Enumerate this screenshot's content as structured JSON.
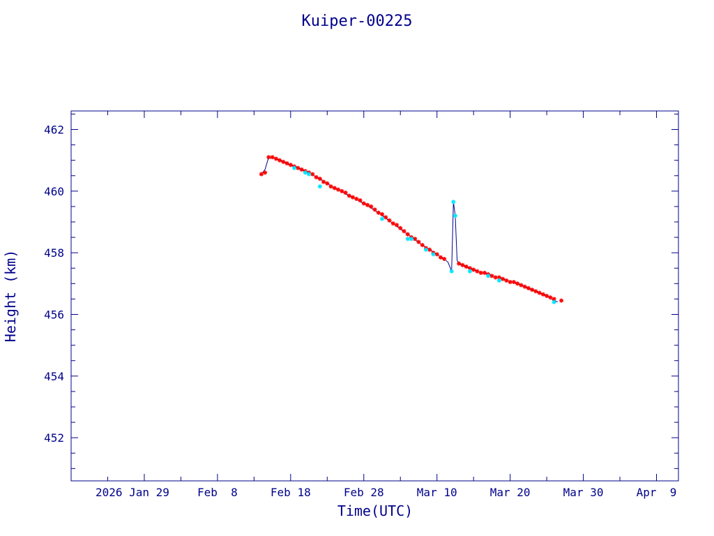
{
  "chart_data": {
    "type": "line",
    "title": "Kuiper-00225",
    "xlabel": "Time(UTC)",
    "ylabel": "Height (km)",
    "x_tick_labels": [
      "2026 Jan 29",
      "Feb  8",
      "Feb 18",
      "Feb 28",
      "Mar 10",
      "Mar 20",
      "Mar 30",
      "Apr  9"
    ],
    "y_tick_labels": [
      "452",
      "454",
      "456",
      "458",
      "460",
      "462"
    ],
    "y_ticks": [
      452,
      454,
      456,
      458,
      460,
      462
    ],
    "ylim": [
      450.6,
      462.6
    ],
    "xlim": [
      "2026-01-19",
      "2026-04-12"
    ],
    "grid": false,
    "legend": "none",
    "colors": {
      "frame": "#00008b",
      "line": "#00008b",
      "primary_points": "#ff0000",
      "secondary_points": "#00e5ff"
    },
    "series": [
      {
        "style": "line",
        "color": "#00008b",
        "x": [
          "2026-02-14T00:00",
          "2026-02-14T12:00",
          "2026-02-15T00:00",
          "2026-02-16T00:00",
          "2026-02-18T00:00",
          "2026-02-20T00:00",
          "2026-02-22T00:00",
          "2026-02-24T00:00",
          "2026-02-26T00:00",
          "2026-02-28T00:00",
          "2026-03-02T00:00",
          "2026-03-04T00:00",
          "2026-03-06T00:00",
          "2026-03-08T00:00",
          "2026-03-10T00:00",
          "2026-03-11T12:00",
          "2026-03-12T00:00",
          "2026-03-12T06:00",
          "2026-03-12T12:00",
          "2026-03-12T18:00",
          "2026-03-13T00:00",
          "2026-03-15T00:00",
          "2026-03-17T00:00",
          "2026-03-19T00:00",
          "2026-03-21T00:00",
          "2026-03-23T00:00",
          "2026-03-25T00:00",
          "2026-03-26T00:00",
          "2026-03-26T12:00"
        ],
        "y": [
          460.55,
          460.7,
          461.1,
          461.05,
          460.85,
          460.65,
          460.4,
          460.1,
          459.85,
          459.6,
          459.3,
          458.95,
          458.6,
          458.25,
          457.95,
          457.7,
          457.4,
          459.65,
          459.2,
          457.75,
          457.65,
          457.45,
          457.3,
          457.15,
          457.0,
          456.8,
          456.6,
          456.45,
          456.4
        ]
      },
      {
        "style": "points",
        "marker": "star",
        "color": "#ff0000",
        "x": [
          "2026-02-14T00:00",
          "2026-02-14T12:00",
          "2026-02-15T00:00",
          "2026-02-15T12:00",
          "2026-02-16T00:00",
          "2026-02-16T12:00",
          "2026-02-17T00:00",
          "2026-02-17T12:00",
          "2026-02-18T00:00",
          "2026-02-18T12:00",
          "2026-02-19T00:00",
          "2026-02-19T12:00",
          "2026-02-20T00:00",
          "2026-02-20T12:00",
          "2026-02-21T00:00",
          "2026-02-21T12:00",
          "2026-02-22T00:00",
          "2026-02-22T12:00",
          "2026-02-23T00:00",
          "2026-02-23T12:00",
          "2026-02-24T00:00",
          "2026-02-24T12:00",
          "2026-02-25T00:00",
          "2026-02-25T12:00",
          "2026-02-26T00:00",
          "2026-02-26T12:00",
          "2026-02-27T00:00",
          "2026-02-27T12:00",
          "2026-02-28T00:00",
          "2026-02-28T12:00",
          "2026-03-01T00:00",
          "2026-03-01T12:00",
          "2026-03-02T00:00",
          "2026-03-02T12:00",
          "2026-03-03T00:00",
          "2026-03-03T12:00",
          "2026-03-04T00:00",
          "2026-03-04T12:00",
          "2026-03-05T00:00",
          "2026-03-05T12:00",
          "2026-03-06T00:00",
          "2026-03-06T12:00",
          "2026-03-07T00:00",
          "2026-03-07T12:00",
          "2026-03-08T00:00",
          "2026-03-08T12:00",
          "2026-03-09T00:00",
          "2026-03-09T12:00",
          "2026-03-10T00:00",
          "2026-03-10T12:00",
          "2026-03-11T00:00",
          "2026-03-13T00:00",
          "2026-03-13T12:00",
          "2026-03-14T00:00",
          "2026-03-14T12:00",
          "2026-03-15T00:00",
          "2026-03-15T12:00",
          "2026-03-16T00:00",
          "2026-03-16T12:00",
          "2026-03-17T00:00",
          "2026-03-17T12:00",
          "2026-03-18T00:00",
          "2026-03-18T12:00",
          "2026-03-19T00:00",
          "2026-03-19T12:00",
          "2026-03-20T00:00",
          "2026-03-20T12:00",
          "2026-03-21T00:00",
          "2026-03-21T12:00",
          "2026-03-22T00:00",
          "2026-03-22T12:00",
          "2026-03-23T00:00",
          "2026-03-23T12:00",
          "2026-03-24T00:00",
          "2026-03-24T12:00",
          "2026-03-25T00:00",
          "2026-03-25T12:00",
          "2026-03-26T00:00",
          "2026-03-27T00:00"
        ],
        "y": [
          460.55,
          460.6,
          461.1,
          461.1,
          461.05,
          461.0,
          460.95,
          460.9,
          460.85,
          460.8,
          460.75,
          460.7,
          460.65,
          460.6,
          460.55,
          460.45,
          460.4,
          460.3,
          460.25,
          460.15,
          460.1,
          460.05,
          460.0,
          459.95,
          459.85,
          459.8,
          459.75,
          459.7,
          459.6,
          459.55,
          459.5,
          459.4,
          459.3,
          459.25,
          459.15,
          459.05,
          458.95,
          458.9,
          458.8,
          458.7,
          458.6,
          458.5,
          458.45,
          458.35,
          458.25,
          458.15,
          458.1,
          458.0,
          457.95,
          457.85,
          457.8,
          457.65,
          457.6,
          457.55,
          457.5,
          457.45,
          457.4,
          457.35,
          457.35,
          457.3,
          457.25,
          457.2,
          457.2,
          457.15,
          457.1,
          457.05,
          457.05,
          457.0,
          456.95,
          456.9,
          456.85,
          456.8,
          456.75,
          456.7,
          456.65,
          456.6,
          456.55,
          456.5,
          456.45
        ]
      },
      {
        "style": "points",
        "marker": "star",
        "color": "#00e5ff",
        "x": [
          "2026-02-18T12:00",
          "2026-02-20T00:00",
          "2026-02-20T12:00",
          "2026-02-22T00:00",
          "2026-03-02T12:00",
          "2026-03-06T00:00",
          "2026-03-06T12:00",
          "2026-03-08T12:00",
          "2026-03-09T12:00",
          "2026-03-12T00:00",
          "2026-03-12T06:00",
          "2026-03-12T12:00",
          "2026-03-14T12:00",
          "2026-03-17T00:00",
          "2026-03-18T12:00",
          "2026-03-26T00:00"
        ],
        "y": [
          460.75,
          460.6,
          460.55,
          460.15,
          459.1,
          458.45,
          458.45,
          458.1,
          457.95,
          457.4,
          459.65,
          459.2,
          457.4,
          457.25,
          457.1,
          456.4
        ]
      }
    ]
  }
}
